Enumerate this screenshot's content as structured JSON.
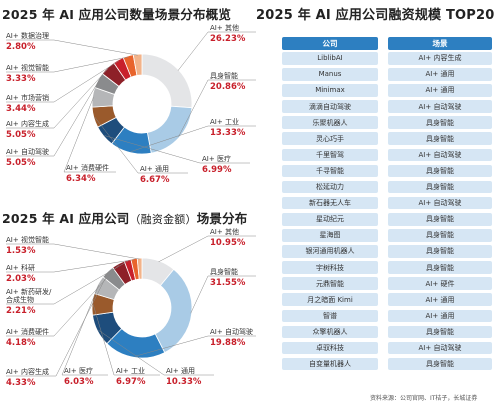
{
  "chart_data": [
    {
      "type": "pie",
      "title": "2025 年 AI 应用公司数量场景分布概览",
      "slices": [
        {
          "name": "AI+ 其他",
          "value": 26.23,
          "label": "26.23%",
          "color": "#e4e5e7"
        },
        {
          "name": "具身智能",
          "value": 20.86,
          "label": "20.86%",
          "color": "#a9cbe6"
        },
        {
          "name": "AI+ 工业",
          "value": 13.33,
          "label": "13.33%",
          "color": "#2d7fc1"
        },
        {
          "name": "AI+ 医疗",
          "value": 6.99,
          "label": "6.99%",
          "color": "#1e4d7c"
        },
        {
          "name": "AI+ 通用",
          "value": 6.67,
          "label": "6.67%",
          "color": "#9a5a2c"
        },
        {
          "name": "AI+ 消费硬件",
          "value": 6.34,
          "label": "6.34%",
          "color": "#b5b6b8"
        },
        {
          "name": "AI+ 自动驾驶",
          "value": 5.05,
          "label": "5.05%",
          "color": "#8a8b8d"
        },
        {
          "name": "AI+ 内容生成",
          "value": 5.05,
          "label": "5.05%",
          "color": "#8e2028"
        },
        {
          "name": "AI+ 市场营销",
          "value": 3.44,
          "label": "3.44%",
          "color": "#c8202b"
        },
        {
          "name": "AI+ 视觉智能",
          "value": 3.33,
          "label": "3.33%",
          "color": "#e8642c"
        },
        {
          "name": "AI+ 数据治理",
          "value": 2.8,
          "label": "2.80%",
          "color": "#f2b38a"
        }
      ]
    },
    {
      "type": "pie",
      "title_main": "2025 年 AI 应用公司",
      "title_paren": "（融资金额）",
      "title_end": "场景分布",
      "slices": [
        {
          "name": "AI+ 其他",
          "value": 10.95,
          "label": "10.95%",
          "color": "#e4e5e7"
        },
        {
          "name": "具身智能",
          "value": 31.55,
          "label": "31.55%",
          "color": "#a9cbe6"
        },
        {
          "name": "AI+ 自动驾驶",
          "value": 19.88,
          "label": "19.88%",
          "color": "#2d7fc1"
        },
        {
          "name": "AI+ 通用",
          "value": 10.33,
          "label": "10.33%",
          "color": "#1e4d7c"
        },
        {
          "name": "AI+ 工业",
          "value": 6.97,
          "label": "6.97%",
          "color": "#9a5a2c"
        },
        {
          "name": "AI+ 医疗",
          "value": 6.03,
          "label": "6.03%",
          "color": "#b5b6b8"
        },
        {
          "name": "AI+ 内容生成",
          "value": 4.33,
          "label": "4.33%",
          "color": "#8a8b8d"
        },
        {
          "name": "AI+ 消费硬件",
          "value": 4.18,
          "label": "4.18%",
          "color": "#8e2028"
        },
        {
          "name": "AI+ 新药研发/合成生物",
          "value": 2.21,
          "label": "2.21%",
          "color": "#c8202b"
        },
        {
          "name": "AI+ 科研",
          "value": 2.03,
          "label": "2.03%",
          "color": "#e8642c"
        },
        {
          "name": "AI+ 视觉智能",
          "value": 1.53,
          "label": "1.53%",
          "color": "#f2b38a"
        }
      ]
    },
    {
      "type": "table",
      "title": "2025 年 AI 应用公司融资规模 TOP20",
      "columns": [
        "公司",
        "场景"
      ],
      "rows": [
        [
          "LiblibAI",
          "AI+ 内容生成"
        ],
        [
          "Manus",
          "AI+ 通用"
        ],
        [
          "Minimax",
          "AI+ 通用"
        ],
        [
          "滴滴自动驾驶",
          "AI+ 自动驾驶"
        ],
        [
          "乐聚机器人",
          "具身智能"
        ],
        [
          "灵心巧手",
          "具身智能"
        ],
        [
          "千里智驾",
          "AI+ 自动驾驶"
        ],
        [
          "千寻智能",
          "具身智能"
        ],
        [
          "松延动力",
          "具身智能"
        ],
        [
          "新石器无人车",
          "AI+ 自动驾驶"
        ],
        [
          "星动纪元",
          "具身智能"
        ],
        [
          "星海图",
          "具身智能"
        ],
        [
          "银河通用机器人",
          "具身智能"
        ],
        [
          "宇树科技",
          "具身智能"
        ],
        [
          "元鼎智能",
          "AI+ 硬件"
        ],
        [
          "月之暗面 Kimi",
          "AI+ 通用"
        ],
        [
          "智谱",
          "AI+ 通用"
        ],
        [
          "众擎机器人",
          "具身智能"
        ],
        [
          "卓驭科技",
          "AI+ 自动驾驶"
        ],
        [
          "自变量机器人",
          "具身智能"
        ]
      ]
    }
  ],
  "source": "资料来源：公司官网、IT桔子，长城证券"
}
